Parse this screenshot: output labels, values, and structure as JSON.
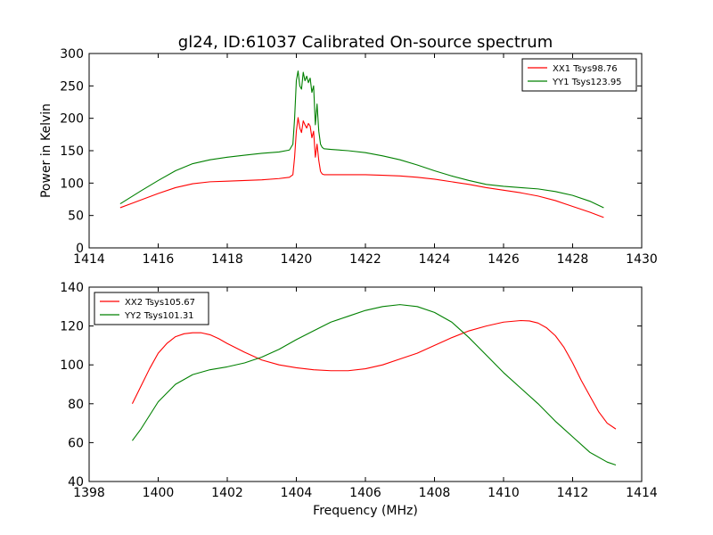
{
  "figure": {
    "title": "gl24, ID:61037 Calibrated On-source spectrum",
    "xlabel": "Frequency (MHz)",
    "ylabel": "Power in Kelvin"
  },
  "chart_data": [
    {
      "type": "line",
      "title": "gl24, ID:61037 Calibrated On-source spectrum",
      "xlabel": "",
      "ylabel": "Power in Kelvin",
      "xlim": [
        1414,
        1430
      ],
      "ylim": [
        0,
        300
      ],
      "xticks": [
        1414,
        1416,
        1418,
        1420,
        1422,
        1424,
        1426,
        1428,
        1430
      ],
      "yticks": [
        0,
        50,
        100,
        150,
        200,
        250,
        300
      ],
      "legend_position": "top-right",
      "grid": false,
      "series": [
        {
          "name": "XX1 Tsys98.76",
          "color": "#ff0000",
          "x": [
            1414.9,
            1415.2,
            1415.5,
            1416.0,
            1416.5,
            1417.0,
            1417.5,
            1418.0,
            1418.5,
            1419.0,
            1419.5,
            1419.8,
            1419.9,
            1419.95,
            1420.0,
            1420.05,
            1420.1,
            1420.15,
            1420.2,
            1420.25,
            1420.3,
            1420.35,
            1420.4,
            1420.45,
            1420.5,
            1420.55,
            1420.6,
            1420.65,
            1420.7,
            1420.75,
            1420.8,
            1421.0,
            1421.5,
            1422.0,
            1422.5,
            1423.0,
            1423.5,
            1424.0,
            1424.5,
            1425.0,
            1425.5,
            1426.0,
            1426.5,
            1427.0,
            1427.5,
            1428.0,
            1428.5,
            1428.9
          ],
          "y": [
            62,
            68,
            74,
            84,
            93,
            99,
            102,
            103,
            104,
            105,
            107,
            109,
            113,
            140,
            180,
            201,
            185,
            178,
            196,
            190,
            185,
            192,
            188,
            170,
            180,
            140,
            160,
            135,
            118,
            114,
            113,
            113,
            113,
            113,
            112,
            111,
            109,
            106,
            102,
            98,
            93,
            89,
            85,
            80,
            73,
            64,
            55,
            47
          ]
        },
        {
          "name": "YY1 Tsys123.95",
          "color": "#008000",
          "x": [
            1414.9,
            1415.2,
            1415.5,
            1416.0,
            1416.5,
            1417.0,
            1417.5,
            1418.0,
            1418.5,
            1419.0,
            1419.5,
            1419.8,
            1419.9,
            1419.95,
            1420.0,
            1420.05,
            1420.1,
            1420.15,
            1420.2,
            1420.25,
            1420.3,
            1420.35,
            1420.4,
            1420.45,
            1420.5,
            1420.55,
            1420.6,
            1420.65,
            1420.7,
            1420.75,
            1420.8,
            1421.0,
            1421.5,
            1422.0,
            1422.5,
            1423.0,
            1423.5,
            1424.0,
            1424.5,
            1425.0,
            1425.5,
            1426.0,
            1426.5,
            1427.0,
            1427.5,
            1428.0,
            1428.5,
            1428.9
          ],
          "y": [
            68,
            78,
            88,
            104,
            119,
            130,
            136,
            140,
            143,
            146,
            148,
            151,
            160,
            200,
            258,
            273,
            250,
            245,
            271,
            258,
            265,
            255,
            262,
            240,
            250,
            190,
            222,
            180,
            160,
            155,
            153,
            152,
            150,
            147,
            142,
            136,
            128,
            119,
            111,
            104,
            98,
            95,
            93,
            91,
            87,
            81,
            72,
            62
          ]
        }
      ]
    },
    {
      "type": "line",
      "title": "",
      "xlabel": "Frequency (MHz)",
      "ylabel": "",
      "xlim": [
        1398,
        1414
      ],
      "ylim": [
        40,
        140
      ],
      "xticks": [
        1398,
        1400,
        1402,
        1404,
        1406,
        1408,
        1410,
        1412,
        1414
      ],
      "yticks": [
        40,
        60,
        80,
        100,
        120,
        140
      ],
      "legend_position": "top-left",
      "grid": false,
      "series": [
        {
          "name": "XX2 Tsys105.67",
          "color": "#ff0000",
          "x": [
            1399.25,
            1399.5,
            1399.75,
            1400.0,
            1400.25,
            1400.5,
            1400.75,
            1401.0,
            1401.25,
            1401.5,
            1401.75,
            1402.0,
            1402.5,
            1403.0,
            1403.5,
            1404.0,
            1404.5,
            1405.0,
            1405.5,
            1406.0,
            1406.5,
            1407.0,
            1407.5,
            1408.0,
            1408.5,
            1409.0,
            1409.5,
            1410.0,
            1410.5,
            1410.75,
            1411.0,
            1411.25,
            1411.5,
            1411.75,
            1412.0,
            1412.25,
            1412.5,
            1412.75,
            1413.0,
            1413.25
          ],
          "y": [
            80,
            89,
            98,
            106,
            111,
            114.5,
            116,
            116.5,
            116.5,
            115.5,
            113.5,
            111,
            106.5,
            102.5,
            100,
            98.5,
            97.5,
            97,
            97,
            98,
            100,
            103,
            106,
            110,
            114,
            117.5,
            120,
            122,
            122.8,
            122.6,
            121.5,
            119,
            115,
            109,
            101,
            92,
            84,
            76,
            70,
            67
          ]
        },
        {
          "name": "YY2 Tsys101.31",
          "color": "#008000",
          "x": [
            1399.25,
            1399.5,
            1400.0,
            1400.5,
            1401.0,
            1401.5,
            1402.0,
            1402.5,
            1403.0,
            1403.5,
            1404.0,
            1404.5,
            1405.0,
            1405.5,
            1406.0,
            1406.5,
            1407.0,
            1407.5,
            1408.0,
            1408.5,
            1409.0,
            1409.5,
            1410.0,
            1410.5,
            1411.0,
            1411.5,
            1412.0,
            1412.5,
            1413.0,
            1413.25
          ],
          "y": [
            61,
            67,
            81,
            90,
            95,
            97.5,
            99,
            101,
            104,
            108,
            113,
            117.5,
            122,
            125,
            128,
            130,
            131,
            130,
            127,
            122,
            114,
            105,
            96,
            88,
            80,
            71,
            63,
            55,
            50,
            48.5
          ]
        }
      ]
    }
  ]
}
